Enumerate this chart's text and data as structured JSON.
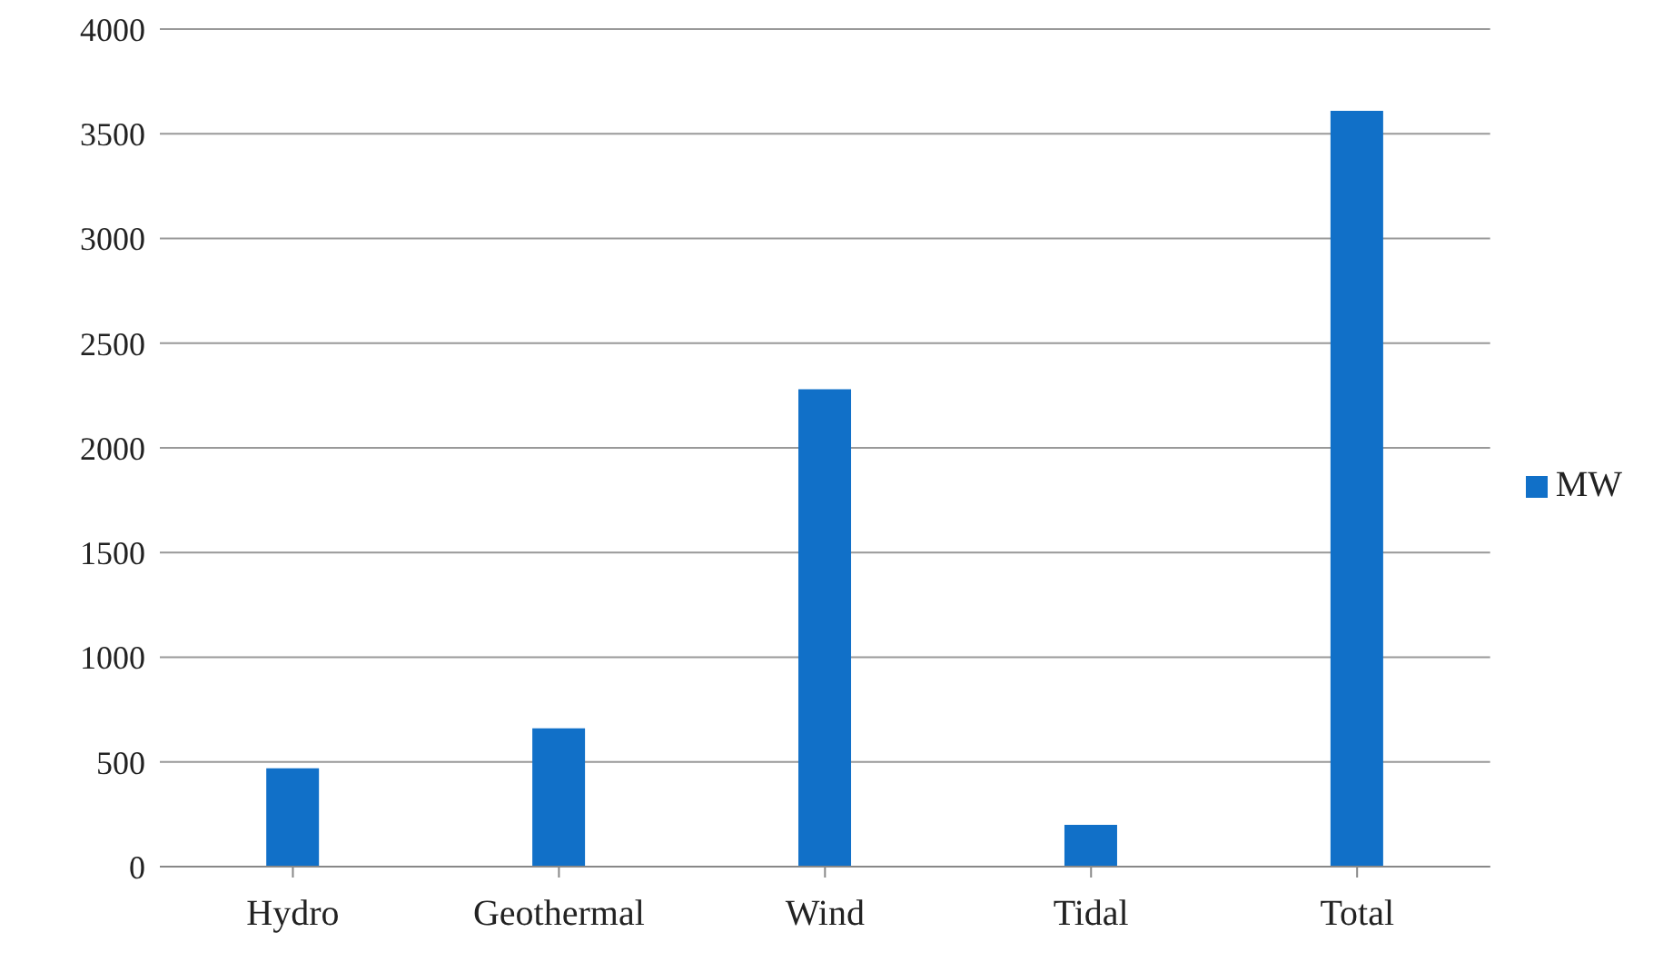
{
  "chart_data": {
    "type": "bar",
    "categories": [
      "Hydro",
      "Geothermal",
      "Wind",
      "Tidal",
      "Total"
    ],
    "series": [
      {
        "name": "MW",
        "color": "#1170c8",
        "values": [
          470,
          660,
          2280,
          200,
          3610
        ]
      }
    ],
    "ylim": [
      0,
      4000
    ],
    "yticks": [
      0,
      500,
      1000,
      1500,
      2000,
      2500,
      3000,
      3500,
      4000
    ],
    "grid": "y",
    "legend": "right"
  }
}
